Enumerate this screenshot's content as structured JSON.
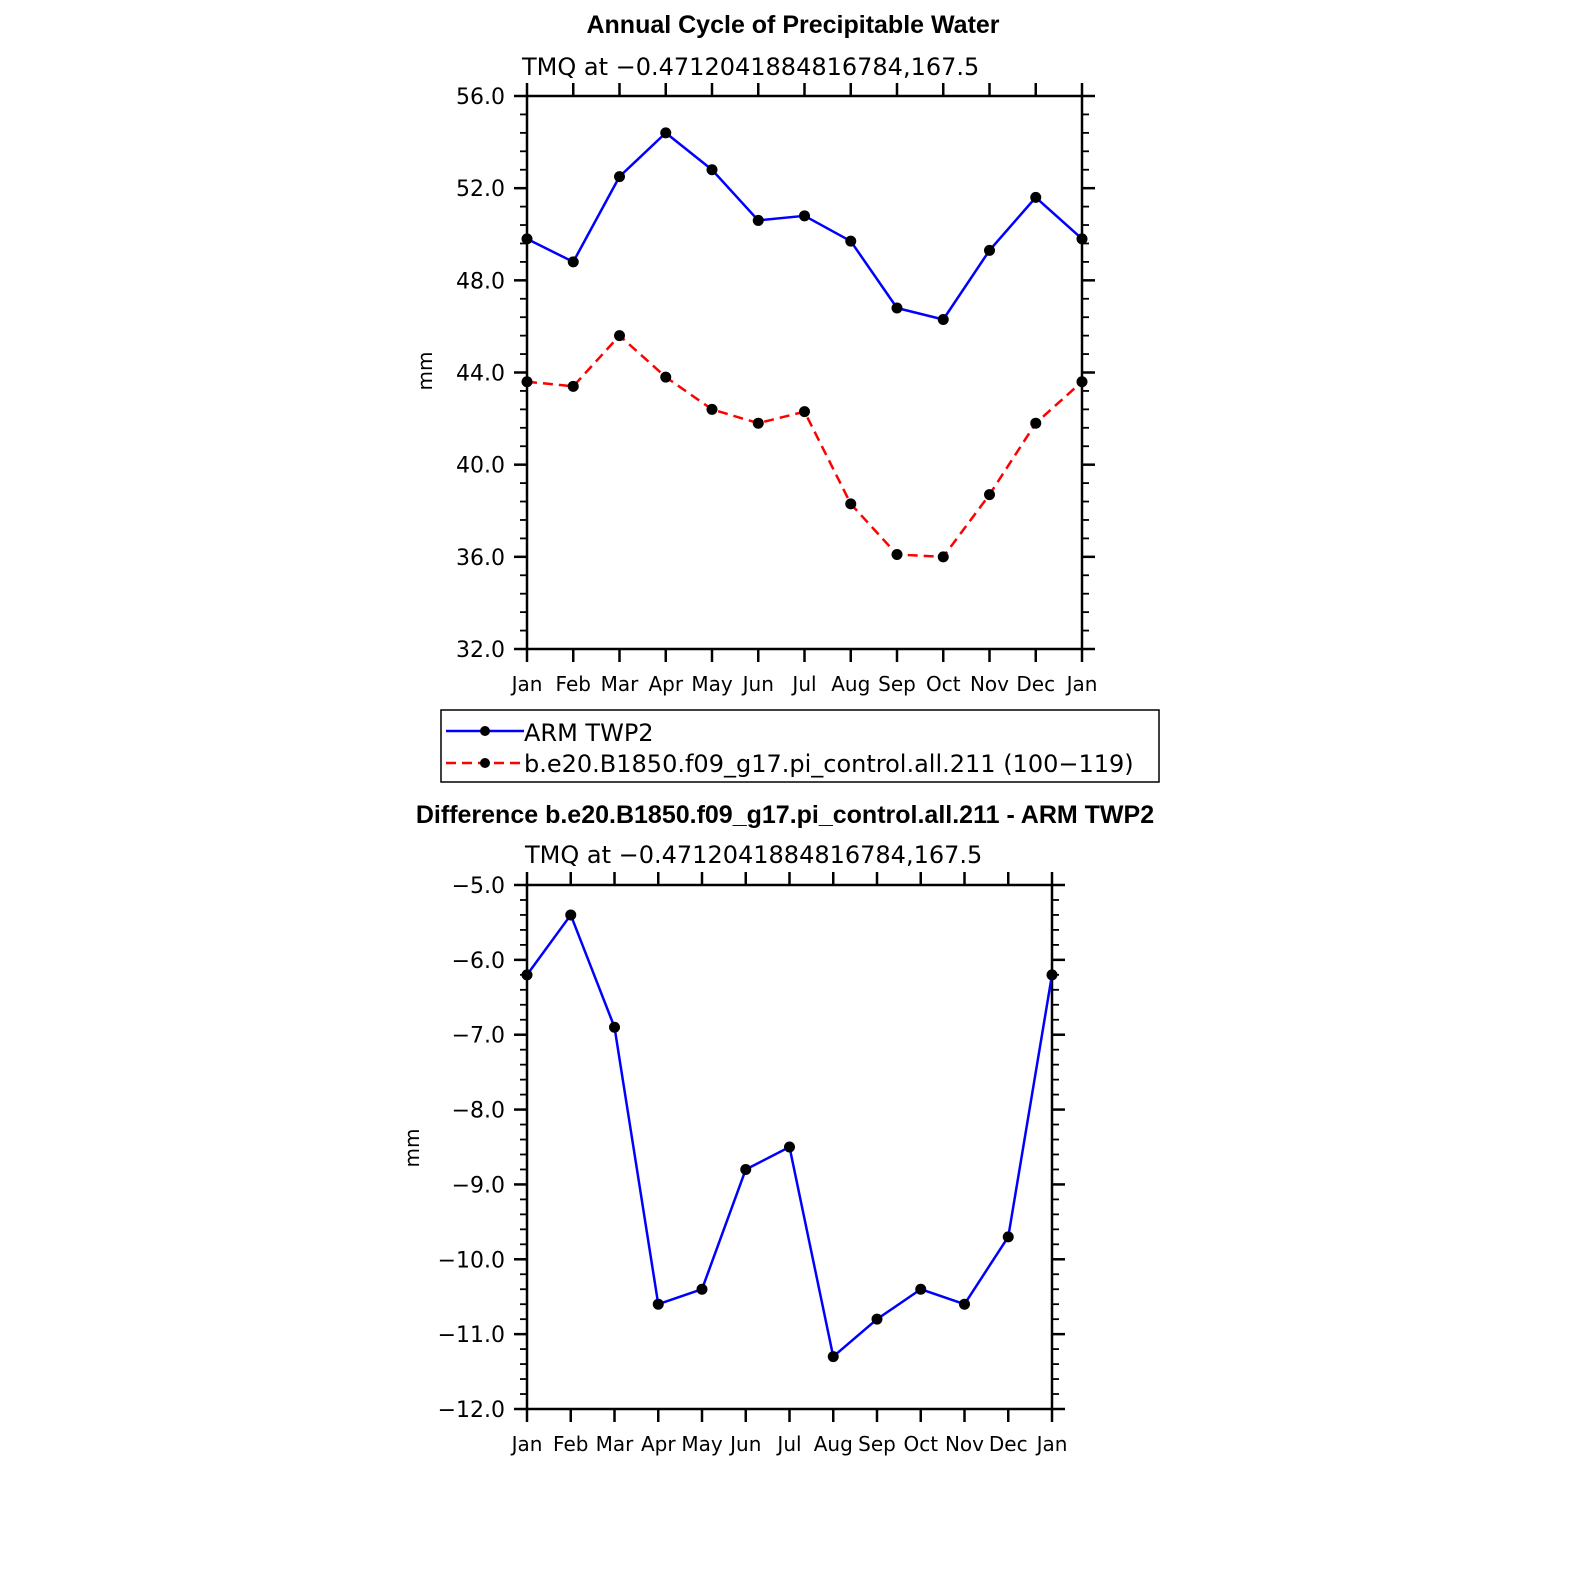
{
  "chart_data": [
    {
      "type": "line",
      "title": "Annual Cycle of Precipitable Water",
      "subtitle": "TMQ at −0.4712041884816784,167.5",
      "ylabel": "mm",
      "xlabel": "",
      "categories": [
        "Jan",
        "Feb",
        "Mar",
        "Apr",
        "May",
        "Jun",
        "Jul",
        "Aug",
        "Sep",
        "Oct",
        "Nov",
        "Dec",
        "Jan"
      ],
      "ylim": [
        32.0,
        56.0
      ],
      "yticks": [
        "32.0",
        "36.0",
        "40.0",
        "44.0",
        "48.0",
        "52.0",
        "56.0"
      ],
      "grid": false,
      "legend_position": "bottom",
      "series": [
        {
          "name": "ARM TWP2",
          "color": "#0000ff",
          "dash": "solid",
          "values": [
            49.8,
            48.8,
            52.5,
            54.4,
            52.8,
            50.6,
            50.8,
            49.7,
            46.8,
            46.3,
            49.3,
            51.6,
            49.8
          ]
        },
        {
          "name": "b.e20.B1850.f09_g17.pi_control.all.211 (100−119)",
          "color": "#ff0000",
          "dash": "dashed",
          "values": [
            43.6,
            43.4,
            45.6,
            43.8,
            42.4,
            41.8,
            42.3,
            38.3,
            36.1,
            36.0,
            38.7,
            41.8,
            43.6
          ]
        }
      ]
    },
    {
      "type": "line",
      "title": "Difference b.e20.B1850.f09_g17.pi_control.all.211 - ARM TWP2",
      "subtitle": "TMQ at −0.4712041884816784,167.5",
      "ylabel": "mm",
      "xlabel": "",
      "categories": [
        "Jan",
        "Feb",
        "Mar",
        "Apr",
        "May",
        "Jun",
        "Jul",
        "Aug",
        "Sep",
        "Oct",
        "Nov",
        "Dec",
        "Jan"
      ],
      "ylim": [
        -12.0,
        -5.0
      ],
      "yticks": [
        "−12.0",
        "−11.0",
        "−10.0",
        "−9.0",
        "−8.0",
        "−7.0",
        "−6.0",
        "−5.0"
      ],
      "grid": false,
      "series": [
        {
          "color": "#0000ff",
          "dash": "solid",
          "values": [
            -6.2,
            -5.4,
            -6.9,
            -10.6,
            -10.4,
            -8.8,
            -8.5,
            -11.3,
            -10.8,
            -10.4,
            -10.6,
            -9.7,
            -6.2
          ]
        }
      ]
    }
  ]
}
